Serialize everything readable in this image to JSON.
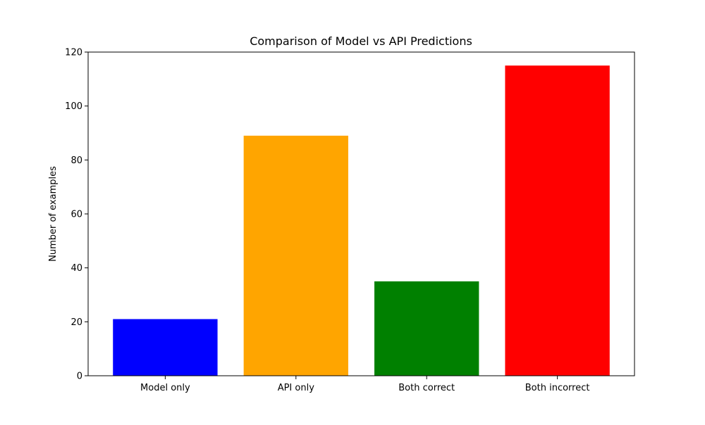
{
  "chart_data": {
    "type": "bar",
    "title": "Comparison of Model vs API Predictions",
    "xlabel": "",
    "ylabel": "Number of examples",
    "categories": [
      "Model only",
      "API only",
      "Both correct",
      "Both incorrect"
    ],
    "values": [
      21,
      89,
      35,
      115
    ],
    "colors": [
      "#0000ff",
      "#ffa500",
      "#008000",
      "#ff0000"
    ],
    "ylim": [
      0,
      120
    ],
    "yticks": [
      0,
      20,
      40,
      60,
      80,
      100,
      120
    ],
    "grid": false,
    "legend": "none"
  }
}
